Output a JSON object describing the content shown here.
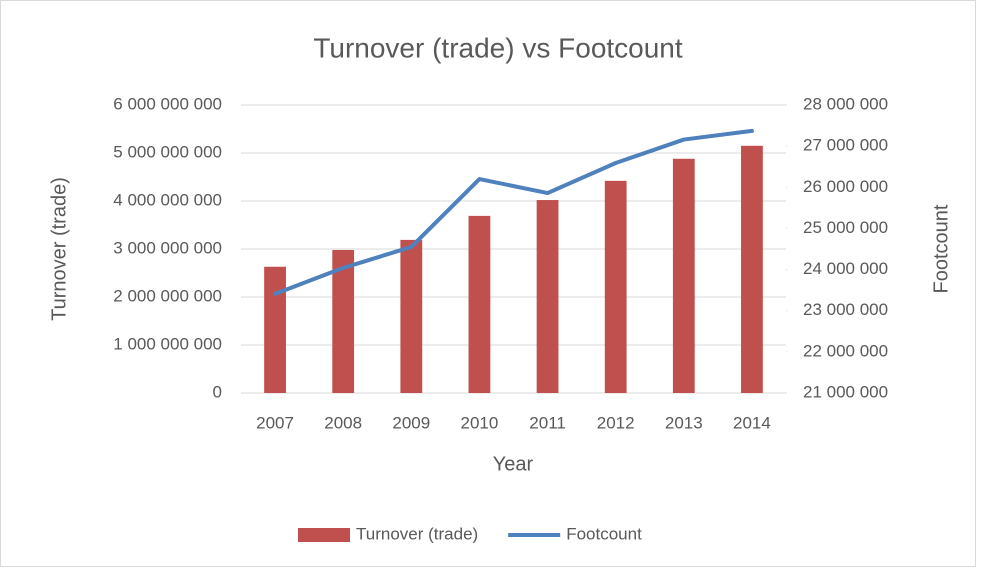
{
  "chart_data": {
    "type": "bar",
    "title": "Turnover (trade) vs Footcount",
    "x_label": "Year",
    "y_label": "Turnover (trade)",
    "y2_label": "Footcount",
    "categories": [
      "2007",
      "2008",
      "2009",
      "2010",
      "2011",
      "2012",
      "2013",
      "2014"
    ],
    "series": [
      {
        "name": "Turnover (trade)",
        "type": "bar",
        "color": "#c0504d",
        "values": [
          2630000000,
          2980000000,
          3190000000,
          3690000000,
          4020000000,
          4420000000,
          4880000000,
          5150000000
        ]
      },
      {
        "name": "Footcount",
        "type": "line",
        "axis": "y2",
        "color": "#4f81bd",
        "values": [
          23410000,
          24040000,
          24550000,
          26200000,
          25860000,
          26590000,
          27160000,
          27370000
        ]
      }
    ],
    "ylim": [
      0,
      6000000000
    ],
    "yticks": [
      0,
      {
        "value": 1000000000,
        "label": "1 000 000 000"
      },
      {
        "value": 2000000000,
        "label": "2 000 000 000"
      },
      {
        "value": 3000000000,
        "label": "3 000 000 000"
      },
      {
        "value": 4000000000,
        "label": "4 000 000 000"
      },
      {
        "value": 5000000000,
        "label": "5 000 000 000"
      },
      {
        "value": 6000000000,
        "label": "6 000 000 000"
      }
    ],
    "y2lim": [
      21000000,
      28000000
    ],
    "y2ticks": [
      {
        "value": 21000000,
        "label": "21 000 000"
      },
      {
        "value": 22000000,
        "label": "22 000 000"
      },
      {
        "value": 23000000,
        "label": "23 000 000"
      },
      {
        "value": 24000000,
        "label": "24 000 000"
      },
      {
        "value": 25000000,
        "label": "25 000 000"
      },
      {
        "value": 26000000,
        "label": "26 000 000"
      },
      {
        "value": 27000000,
        "label": "27 000 000"
      },
      {
        "value": 28000000,
        "label": "28 000 000"
      }
    ],
    "grid": true,
    "legend": "bottom"
  }
}
